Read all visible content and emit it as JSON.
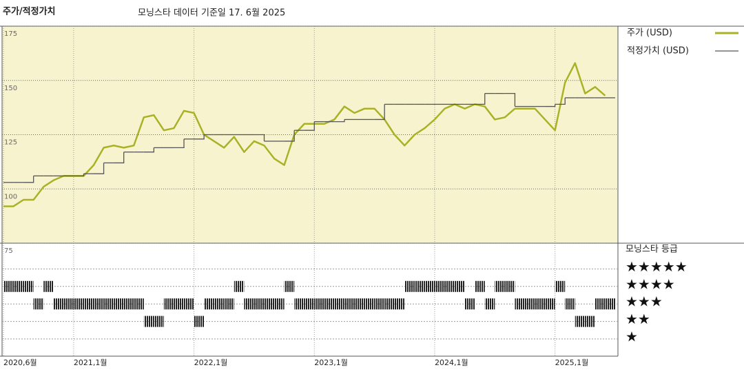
{
  "chart_data": {
    "type": "line",
    "title": "주가/적정가치",
    "subtitle": "모닝스타 데이터 기준일 17. 6월 2025",
    "x": [
      "2020-06",
      "2020-07",
      "2020-08",
      "2020-09",
      "2020-10",
      "2020-11",
      "2020-12",
      "2021-01",
      "2021-02",
      "2021-03",
      "2021-04",
      "2021-05",
      "2021-06",
      "2021-07",
      "2021-08",
      "2021-09",
      "2021-10",
      "2021-11",
      "2021-12",
      "2022-01",
      "2022-02",
      "2022-03",
      "2022-04",
      "2022-05",
      "2022-06",
      "2022-07",
      "2022-08",
      "2022-09",
      "2022-10",
      "2022-11",
      "2022-12",
      "2023-01",
      "2023-02",
      "2023-03",
      "2023-04",
      "2023-05",
      "2023-06",
      "2023-07",
      "2023-08",
      "2023-09",
      "2023-10",
      "2023-11",
      "2023-12",
      "2024-01",
      "2024-02",
      "2024-03",
      "2024-04",
      "2024-05",
      "2024-06",
      "2024-07",
      "2024-08",
      "2024-09",
      "2024-10",
      "2024-11",
      "2024-12",
      "2025-01",
      "2025-02",
      "2025-03",
      "2025-04",
      "2025-05",
      "2025-06"
    ],
    "series": [
      {
        "name": "주가 (USD)",
        "color": "#a9b227",
        "values": [
          92,
          92,
          95,
          95,
          101,
          104,
          106,
          106,
          106,
          111,
          119,
          120,
          119,
          120,
          133,
          134,
          127,
          128,
          136,
          135,
          125,
          122,
          119,
          124,
          117,
          122,
          120,
          114,
          111,
          125,
          130,
          130,
          130,
          132,
          138,
          135,
          137,
          137,
          132,
          125,
          120,
          125,
          128,
          132,
          137,
          139,
          137,
          139,
          138,
          132,
          133,
          137,
          137,
          137,
          132,
          127,
          149,
          158,
          144,
          147,
          143
        ]
      },
      {
        "name": "적정가치 (USD)",
        "color": "#555555",
        "step": true,
        "values": [
          103,
          103,
          103,
          106,
          106,
          106,
          106,
          106,
          107,
          107,
          112,
          112,
          117,
          117,
          117,
          119,
          119,
          119,
          123,
          123,
          125,
          125,
          125,
          125,
          125,
          125,
          122,
          122,
          122,
          127,
          127,
          131,
          131,
          131,
          132,
          132,
          132,
          132,
          139,
          139,
          139,
          139,
          139,
          139,
          139,
          139,
          139,
          139,
          144,
          144,
          144,
          138,
          138,
          138,
          138,
          139,
          142,
          142,
          142,
          142,
          142
        ]
      }
    ],
    "xlim": [
      "2020-06",
      "2025-07"
    ],
    "xticks": [
      {
        "value": "2020-06",
        "label": "2020,6월"
      },
      {
        "value": "2021-01",
        "label": "2021,1월"
      },
      {
        "value": "2022-01",
        "label": "2022,1월"
      },
      {
        "value": "2023-01",
        "label": "2023,1월"
      },
      {
        "value": "2024-01",
        "label": "2024,1월"
      },
      {
        "value": "2025-01",
        "label": "2025,1월"
      }
    ],
    "ylim": [
      75,
      175
    ],
    "yticks": [
      75,
      100,
      125,
      150,
      175
    ],
    "rating_title": "모닝스타 등급",
    "rating_ticks": [
      {
        "value": 5,
        "label": "★★★★★"
      },
      {
        "value": 4,
        "label": "★★★★"
      },
      {
        "value": 3,
        "label": "★★★"
      },
      {
        "value": 2,
        "label": "★★"
      },
      {
        "value": 1,
        "label": "★"
      }
    ],
    "ratings": [
      4,
      4,
      4,
      3,
      4,
      3,
      3,
      3,
      3,
      3,
      3,
      3,
      3,
      3,
      2,
      2,
      3,
      3,
      3,
      2,
      3,
      3,
      3,
      4,
      3,
      3,
      3,
      3,
      4,
      3,
      3,
      3,
      3,
      3,
      3,
      3,
      3,
      3,
      3,
      3,
      4,
      4,
      4,
      4,
      4,
      4,
      3,
      4,
      3,
      4,
      4,
      3,
      3,
      3,
      3,
      4,
      3,
      2,
      2,
      3,
      3
    ],
    "rating_color": "#222222",
    "plot_background": "#f7f3cf",
    "grid": true
  }
}
